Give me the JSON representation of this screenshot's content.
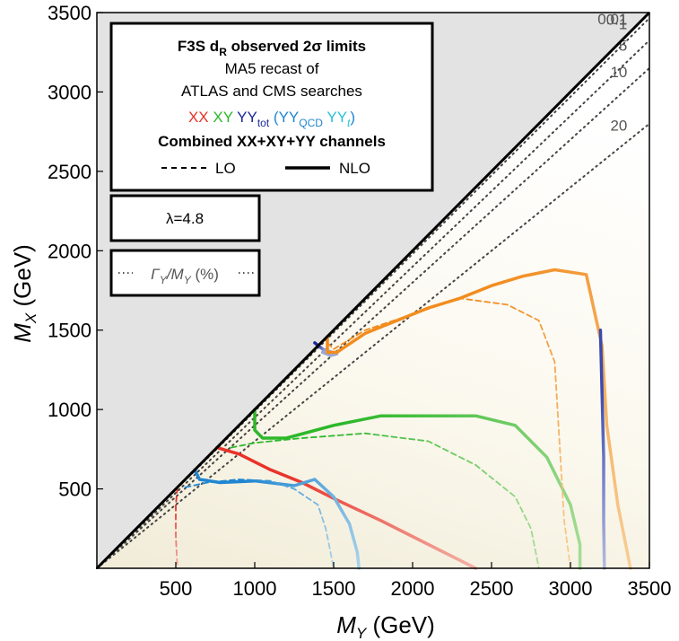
{
  "chart_data": {
    "type": "line",
    "title": "F3S d",
    "title_sub": "R",
    "title_rest": " observed 2σ limits",
    "subtitle_line1": "MA5 recast of",
    "subtitle_line2": "ATLAS and CMS searches",
    "xlabel_main": "M",
    "xlabel_sub": "Y",
    "xlabel_unit": " (GeV)",
    "ylabel_main": "M",
    "ylabel_sub": "X",
    "ylabel_unit": " (GeV)",
    "xlim": [
      0,
      3500
    ],
    "ylim": [
      0,
      3500
    ],
    "x_ticks": [
      "500",
      "1000",
      "1500",
      "2000",
      "2500",
      "3000",
      "3500"
    ],
    "y_ticks": [
      "500",
      "1000",
      "1500",
      "2000",
      "2500",
      "3000",
      "3500"
    ],
    "lambda_label": "λ=4.8",
    "ratio_legend": {
      "main": "Γ",
      "sub1": "Y",
      "mid": "/M",
      "sub2": "Y",
      "end": " (%)"
    },
    "legend": {
      "xx": "XX",
      "xy": "XY",
      "yy_main": "YY",
      "yy_sub": "tot",
      "yyqcd_open": "(YY",
      "yyqcd_sub": "QCD",
      "yyt_main": "YY",
      "yyt_sub": "t",
      "yyt_close": ")",
      "combined": "Combined XX+XY+YY channels",
      "lo": "LO",
      "nlo": "NLO"
    },
    "width_ratio_lines": [
      {
        "label": "0.01",
        "slope": 0.9999
      },
      {
        "label": "0.1",
        "slope": 0.999
      },
      {
        "label": "1",
        "slope": 0.99
      },
      {
        "label": "5",
        "slope": 0.95
      },
      {
        "label": "10",
        "slope": 0.9
      },
      {
        "label": "20",
        "slope": 0.8
      }
    ],
    "series": [
      {
        "name": "XX",
        "order": "NLO",
        "color": "#e8322a",
        "fade": "#f4b2a6",
        "x": [
          760,
          900,
          1100,
          1300,
          1500,
          1800,
          2100,
          2400
        ],
        "y": [
          760,
          720,
          620,
          540,
          440,
          300,
          150,
          0
        ]
      },
      {
        "name": "XX",
        "order": "LO",
        "color": "#e8322a",
        "fade": "#f4b2a6",
        "x": [
          510,
          500,
          500,
          510
        ],
        "y": [
          510,
          400,
          200,
          0
        ]
      },
      {
        "name": "XY",
        "order": "NLO",
        "color": "#2db82a",
        "fade": "#a7dd98",
        "x": [
          1000,
          1000,
          1050,
          1200,
          1500,
          1800,
          2100,
          2400,
          2650,
          2850,
          3000,
          3060,
          3060
        ],
        "y": [
          1000,
          870,
          820,
          820,
          900,
          960,
          960,
          960,
          900,
          700,
          400,
          150,
          0
        ]
      },
      {
        "name": "XY",
        "order": "LO",
        "color": "#2db82a",
        "fade": "#a7dd98",
        "x": [
          850,
          1000,
          1300,
          1700,
          2100,
          2400,
          2650,
          2750,
          2800
        ],
        "y": [
          760,
          790,
          820,
          850,
          800,
          650,
          450,
          250,
          0
        ]
      },
      {
        "name": "YY_QCD",
        "order": "NLO",
        "color": "#1f86d1",
        "fade": "#a9d2ea",
        "x": [
          620,
          650,
          780,
          1000,
          1250,
          1380,
          1500,
          1600,
          1650,
          1660
        ],
        "y": [
          620,
          560,
          540,
          550,
          520,
          560,
          450,
          280,
          100,
          0
        ]
      },
      {
        "name": "YY_QCD",
        "order": "LO",
        "color": "#1f86d1",
        "fade": "#a9d2ea",
        "x": [
          560,
          700,
          900,
          1100,
          1250,
          1400,
          1450,
          1480,
          1500
        ],
        "y": [
          510,
          540,
          560,
          550,
          500,
          400,
          250,
          100,
          0
        ]
      },
      {
        "name": "YY_tot",
        "order": "NLO",
        "color": "#1a2a9c",
        "fade": "#9aa9d4",
        "x": [
          1380,
          1430,
          1520,
          1480,
          1430
        ],
        "y": [
          1420,
          1380,
          1350,
          1340,
          1360
        ]
      },
      {
        "name": "Combined",
        "order": "NLO",
        "color": "#f28c1e",
        "fade": "#f7cf98",
        "x": [
          1460,
          1460,
          1520,
          1700,
          1900,
          2100,
          2300,
          2500,
          2700,
          2900,
          3100,
          3200,
          3230,
          3300,
          3380
        ],
        "y": [
          1460,
          1360,
          1360,
          1480,
          1560,
          1640,
          1700,
          1780,
          1840,
          1880,
          1850,
          1400,
          900,
          400,
          0
        ]
      },
      {
        "name": "Combined",
        "order": "LO",
        "color": "#f28c1e",
        "fade": "#f7cf98",
        "x": [
          1460,
          1500,
          1700,
          2000,
          2300,
          2600,
          2800,
          2900,
          2930,
          2960,
          3000
        ],
        "y": [
          1420,
          1380,
          1500,
          1600,
          1700,
          1660,
          1560,
          1300,
          800,
          300,
          0
        ]
      },
      {
        "name": "YY_tot",
        "order": "NLO",
        "color": "#3a4ab0",
        "fade": "#b3bbe0",
        "x": [
          3190,
          3200,
          3210,
          3210,
          3215
        ],
        "y": [
          1500,
          1100,
          700,
          300,
          0
        ]
      }
    ],
    "grid": false
  }
}
